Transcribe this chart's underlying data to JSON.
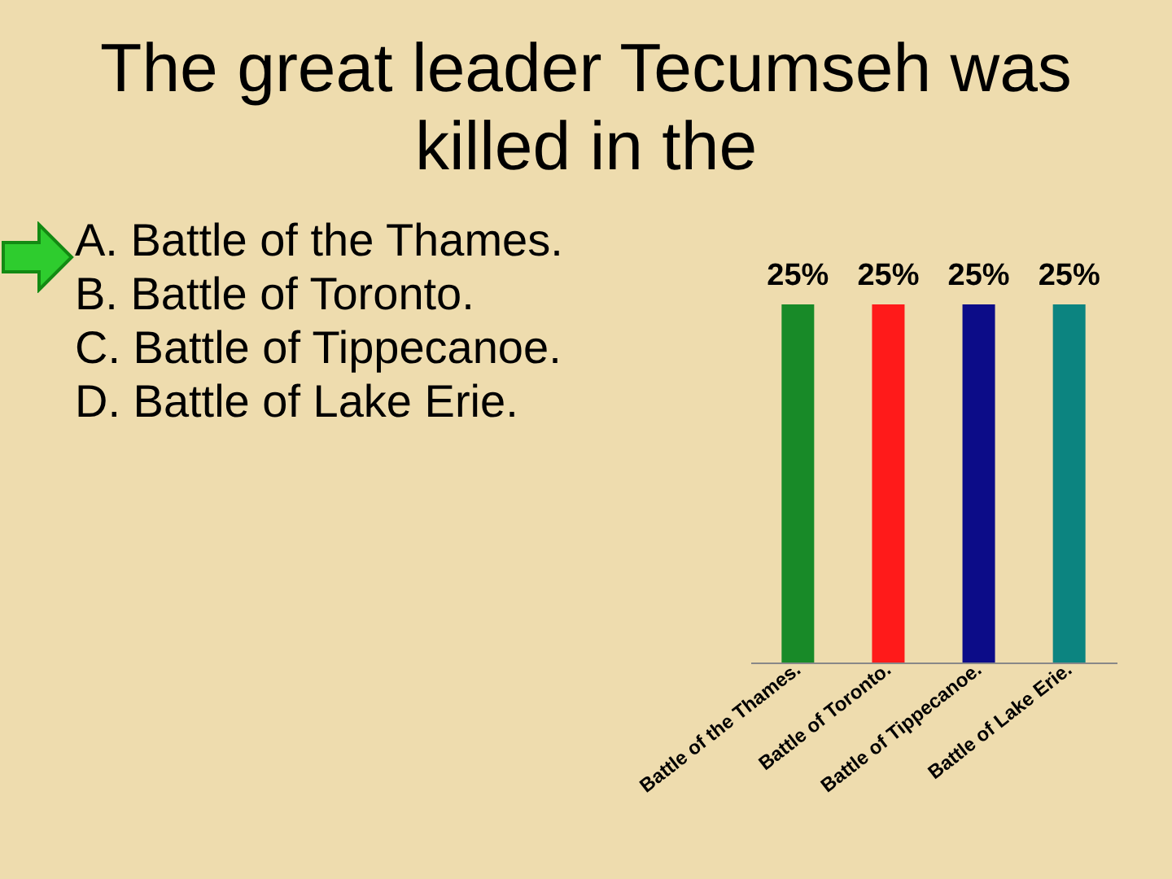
{
  "chart_data": {
    "type": "bar",
    "title": "The great leader Tecumseh was killed in the",
    "annotations": [
      "A. Battle of the Thames.",
      "B. Battle of Toronto.",
      "C. Battle of Tippecanoe.",
      "D. Battle of Lake Erie."
    ],
    "categories": [
      "Battle of the Thames.",
      "Battle of Toronto.",
      "Battle of Tippecanoe.",
      "Battle of Lake Erie."
    ],
    "values": [
      25,
      25,
      25,
      25
    ],
    "colors": [
      "#188a28",
      "#ff1a1a",
      "#0c0c88",
      "#0c8480"
    ],
    "value_labels": [
      "25%",
      "25%",
      "25%",
      "25%"
    ]
  }
}
